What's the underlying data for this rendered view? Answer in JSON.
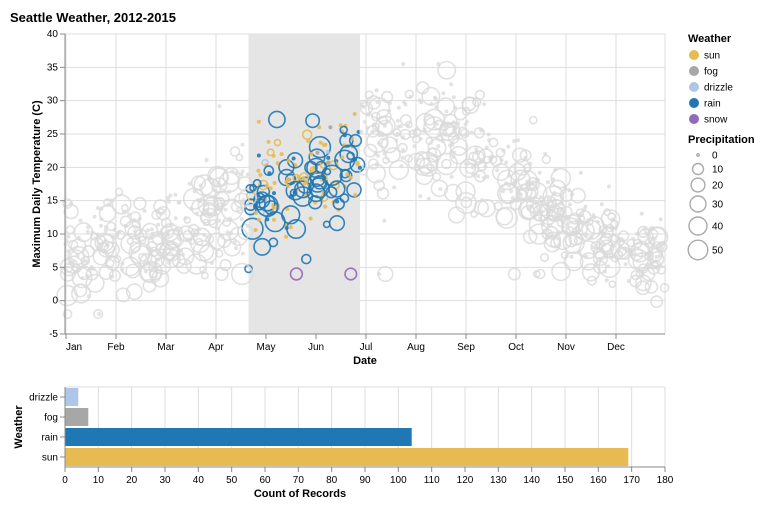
{
  "title": "Seattle Weather, 2012-2015",
  "chart_data": [
    {
      "type": "scatter",
      "title": "Seattle Weather, 2012-2015",
      "xlabel": "Date",
      "ylabel": "Maximum Daily Temperature (C)",
      "x_ticks": [
        "Jan",
        "Feb",
        "Mar",
        "Apr",
        "May",
        "Jun",
        "Jul",
        "Aug",
        "Sep",
        "Oct",
        "Nov",
        "Dec"
      ],
      "ylim": [
        -5,
        40
      ],
      "y_ticks": [
        "-5",
        "0",
        "5",
        "10",
        "15",
        "20",
        "25",
        "30",
        "35",
        "40"
      ],
      "grid": true,
      "brush_selection_months": [
        3.67,
        5.9
      ],
      "monthly_typical_max_temp": [
        8,
        10,
        12,
        15,
        18,
        21,
        26,
        26,
        21,
        16,
        10,
        8
      ],
      "monthly_spread": [
        4,
        3.5,
        3.5,
        4,
        4,
        4,
        4.5,
        4.5,
        4,
        3.5,
        3,
        3
      ],
      "weather_mix": {
        "sun": 0.44,
        "fog": 0.05,
        "drizzle": 0.03,
        "rain": 0.44,
        "snow": 0.01
      }
    },
    {
      "type": "bar",
      "orientation": "horizontal",
      "categories": [
        "drizzle",
        "fog",
        "rain",
        "sun"
      ],
      "values": [
        4,
        7,
        104,
        169
      ],
      "xlabel": "Count of Records",
      "ylabel": "Weather",
      "xlim": [
        0,
        180
      ],
      "x_ticks": [
        "0",
        "10",
        "20",
        "30",
        "40",
        "50",
        "60",
        "70",
        "80",
        "90",
        "100",
        "110",
        "120",
        "130",
        "140",
        "150",
        "160",
        "170",
        "180"
      ]
    }
  ],
  "legend": {
    "weather_title": "Weather",
    "weather_items": [
      {
        "label": "sun",
        "color": "#e7ba52"
      },
      {
        "label": "fog",
        "color": "#a7a7a7"
      },
      {
        "label": "drizzle",
        "color": "#aec7e8"
      },
      {
        "label": "rain",
        "color": "#1f77b4"
      },
      {
        "label": "snow",
        "color": "#9467bd"
      }
    ],
    "precip_title": "Precipitation",
    "precip_items": [
      {
        "label": "0",
        "value": 0
      },
      {
        "label": "10",
        "value": 10
      },
      {
        "label": "20",
        "value": 20
      },
      {
        "label": "30",
        "value": 30
      },
      {
        "label": "40",
        "value": 40
      },
      {
        "label": "50",
        "value": 50
      }
    ]
  },
  "colors": {
    "grid": "#dddddd",
    "axis": "#888888",
    "brush": "#e5e5e5",
    "unselected": "#d9d9d9"
  }
}
